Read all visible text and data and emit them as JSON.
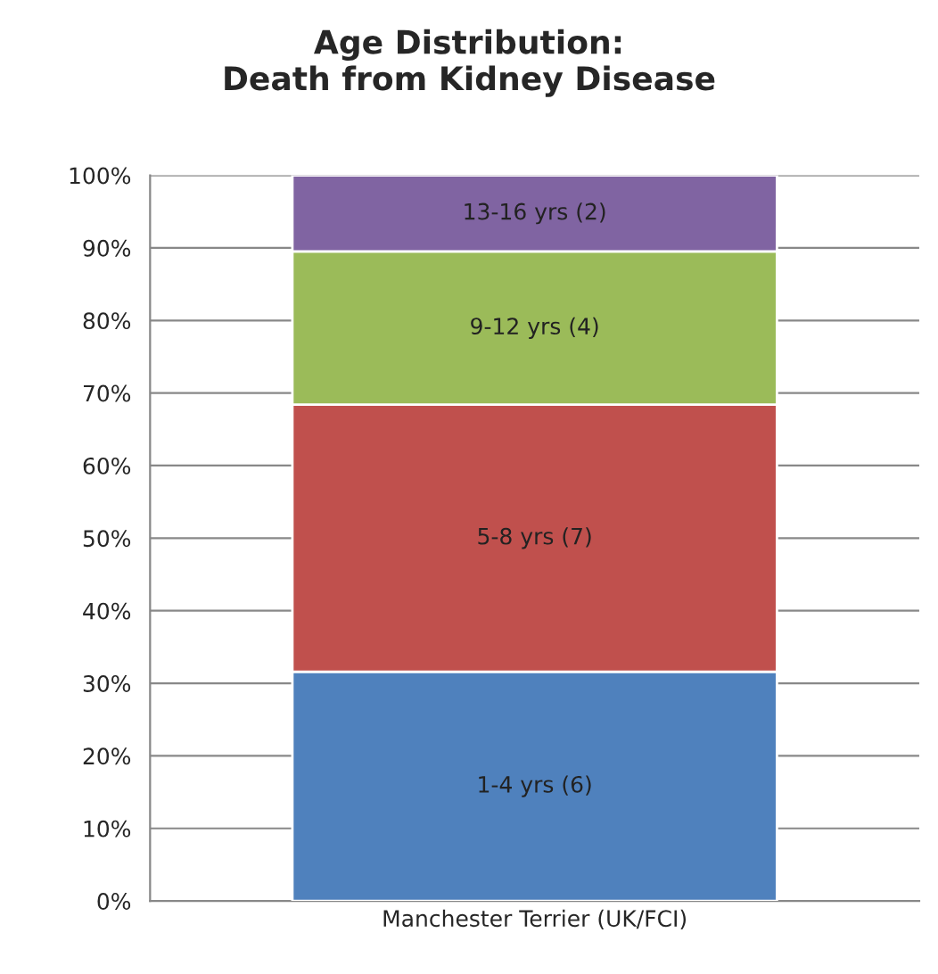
{
  "chart_data": {
    "type": "bar",
    "title": "Age Distribution:\nDeath from Kidney Disease",
    "categories": [
      "Manchester Terrier (UK/FCI)"
    ],
    "stacked": true,
    "series": [
      {
        "color": "#4f81bd",
        "values": [
          31.6
        ],
        "value_labels": [
          "1-4 yrs (6)"
        ]
      },
      {
        "color": "#c0504d",
        "values": [
          36.8
        ],
        "value_labels": [
          "5-8 yrs (7)"
        ]
      },
      {
        "color": "#9bbb59",
        "values": [
          21.1
        ],
        "value_labels": [
          "9-12 yrs (4)"
        ]
      },
      {
        "color": "#8064a2",
        "values": [
          10.5
        ],
        "value_labels": [
          "13-16 yrs (2)"
        ]
      }
    ],
    "ylim": [
      0,
      100
    ],
    "yticks": [
      {
        "value": 0,
        "label": "0%"
      },
      {
        "value": 10,
        "label": "10%"
      },
      {
        "value": 20,
        "label": "20%"
      },
      {
        "value": 30,
        "label": "30%"
      },
      {
        "value": 40,
        "label": "40%"
      },
      {
        "value": 50,
        "label": "50%"
      },
      {
        "value": 60,
        "label": "60%"
      },
      {
        "value": 70,
        "label": "70%"
      },
      {
        "value": 80,
        "label": "80%"
      },
      {
        "value": 90,
        "label": "90%"
      },
      {
        "value": 100,
        "label": "100%"
      }
    ],
    "grid": "y",
    "legend": false
  }
}
